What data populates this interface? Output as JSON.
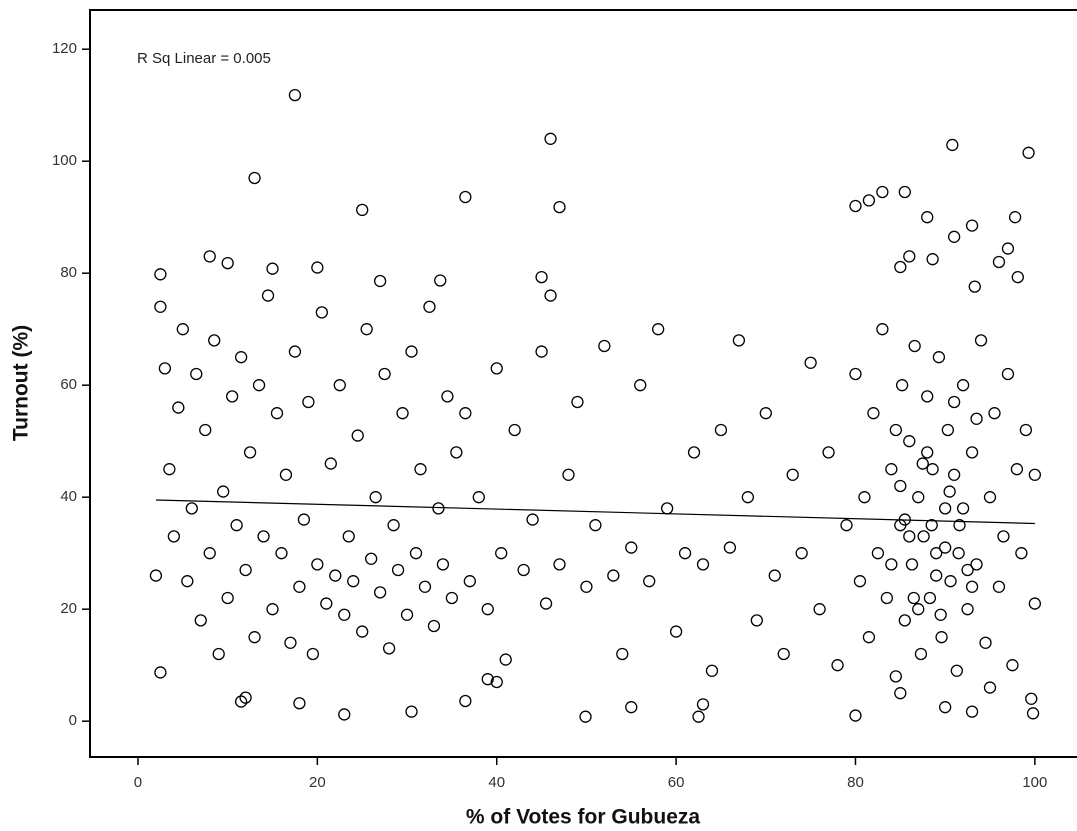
{
  "chart_data": {
    "type": "scatter",
    "xlabel": "% of Votes for Gubueza",
    "ylabel": "Turnout (%)",
    "annotation": "R Sq Linear = 0.005",
    "color": "#000000",
    "xlim": [
      -5.35,
      104.7
    ],
    "ylim": [
      -6.4,
      127
    ],
    "xticks": [
      0,
      20,
      40,
      60,
      80,
      100
    ],
    "yticks": [
      0,
      20,
      40,
      60,
      80,
      100,
      120
    ],
    "fit_line": {
      "x": [
        2,
        100
      ],
      "y": [
        39.5,
        35.3
      ]
    },
    "x": [
      17.5,
      13,
      25,
      36.5,
      46,
      47,
      90.8,
      99.3,
      83,
      85.5,
      80,
      81.5,
      88,
      97.8,
      93,
      91,
      86,
      8,
      10,
      20,
      2.5,
      15,
      27,
      33.7,
      45,
      96,
      97,
      98.1,
      93.3,
      88.6,
      85,
      2.5,
      11.5,
      12,
      18,
      23,
      30.5,
      36.5,
      39,
      40,
      49.9,
      55,
      62.5,
      63,
      80,
      90,
      93,
      99.8,
      99.6,
      85,
      95,
      2,
      2.5,
      3,
      3.5,
      4,
      4.5,
      5,
      5.5,
      6,
      6.5,
      7,
      7.5,
      8,
      8.5,
      9,
      9.5,
      10,
      10.5,
      11,
      11.5,
      12,
      12.5,
      13,
      13.5,
      14,
      14.5,
      15,
      15.5,
      16,
      16.5,
      17,
      17.5,
      18,
      18.5,
      19,
      19.5,
      20,
      20.5,
      21,
      21.5,
      22,
      22.5,
      23,
      23.5,
      24,
      24.5,
      25,
      25.5,
      26,
      26.5,
      27,
      27.5,
      28,
      28.5,
      29,
      29.5,
      30,
      30.5,
      31,
      31.5,
      32,
      32.5,
      33,
      33.5,
      34,
      34.5,
      35,
      35.5,
      36.5,
      37,
      38,
      39,
      40,
      40.5,
      41,
      42,
      43,
      44,
      45,
      45.5,
      46,
      47,
      48,
      49,
      50,
      51,
      52,
      53,
      54,
      55,
      56,
      57,
      58,
      59,
      60,
      61,
      62,
      63,
      64,
      65,
      66,
      67,
      68,
      69,
      70,
      71,
      72,
      73,
      74,
      75,
      76,
      77,
      78,
      79,
      80,
      80.5,
      81,
      81.5,
      82,
      82.5,
      83,
      83.5,
      84,
      84.5,
      85,
      85.2,
      85.5,
      86,
      86.3,
      86.6,
      87,
      87.3,
      87.6,
      88,
      88.3,
      88.6,
      89,
      89.3,
      89.6,
      90,
      90.3,
      90.6,
      91,
      91.3,
      91.6,
      92,
      92.5,
      93,
      93.5,
      94,
      94.5,
      95,
      95.5,
      96,
      96.5,
      97,
      97.5,
      98,
      98.5,
      99,
      100,
      100,
      84,
      85,
      86,
      87,
      88,
      89,
      90,
      91,
      92,
      93,
      84.5,
      85.5,
      86.5,
      87.5,
      88.5,
      89.5,
      90.5,
      91.5,
      92.5,
      93.5
    ],
    "y": [
      111.8,
      97,
      91.3,
      93.6,
      104,
      91.8,
      102.9,
      101.5,
      94.5,
      94.5,
      92,
      93,
      90,
      90,
      88.5,
      86.5,
      83,
      83,
      81.8,
      81,
      79.8,
      80.8,
      78.6,
      78.7,
      79.3,
      82,
      84.4,
      79.3,
      77.6,
      82.5,
      81.1,
      8.7,
      3.5,
      4.2,
      3.2,
      1.2,
      1.7,
      3.6,
      7.5,
      7,
      0.8,
      2.5,
      0.8,
      3,
      1,
      2.5,
      1.7,
      1.4,
      4,
      5,
      6,
      26,
      74,
      63,
      45,
      33,
      56,
      70,
      25,
      38,
      62,
      18,
      52,
      30,
      68,
      12,
      41,
      22,
      58,
      35,
      65,
      27,
      48,
      15,
      60,
      33,
      76,
      20,
      55,
      30,
      44,
      14,
      66,
      24,
      36,
      57,
      12,
      28,
      73,
      21,
      46,
      26,
      60,
      19,
      33,
      25,
      51,
      16,
      70,
      29,
      40,
      23,
      62,
      13,
      35,
      27,
      55,
      19,
      66,
      30,
      45,
      24,
      74,
      17,
      38,
      28,
      58,
      22,
      48,
      55,
      25,
      40,
      20,
      63,
      30,
      11,
      52,
      27,
      36,
      66,
      21,
      76,
      28,
      44,
      57,
      24,
      35,
      67,
      26,
      12,
      31,
      60,
      25,
      70,
      38,
      16,
      30,
      48,
      28,
      9,
      52,
      31,
      68,
      40,
      18,
      55,
      26,
      12,
      44,
      30,
      64,
      20,
      48,
      10,
      35,
      62,
      25,
      40,
      15,
      55,
      30,
      70,
      22,
      45,
      8,
      35,
      60,
      18,
      50,
      28,
      67,
      40,
      12,
      33,
      58,
      22,
      45,
      30,
      65,
      15,
      38,
      52,
      25,
      44,
      9,
      35,
      60,
      20,
      48,
      28,
      68,
      14,
      40,
      55,
      24,
      33,
      62,
      10,
      45,
      30,
      52,
      21,
      44,
      28,
      42,
      33,
      20,
      48,
      26,
      31,
      57,
      38,
      24,
      52,
      36,
      22,
      46,
      35,
      19,
      41,
      30,
      27,
      54
    ]
  }
}
